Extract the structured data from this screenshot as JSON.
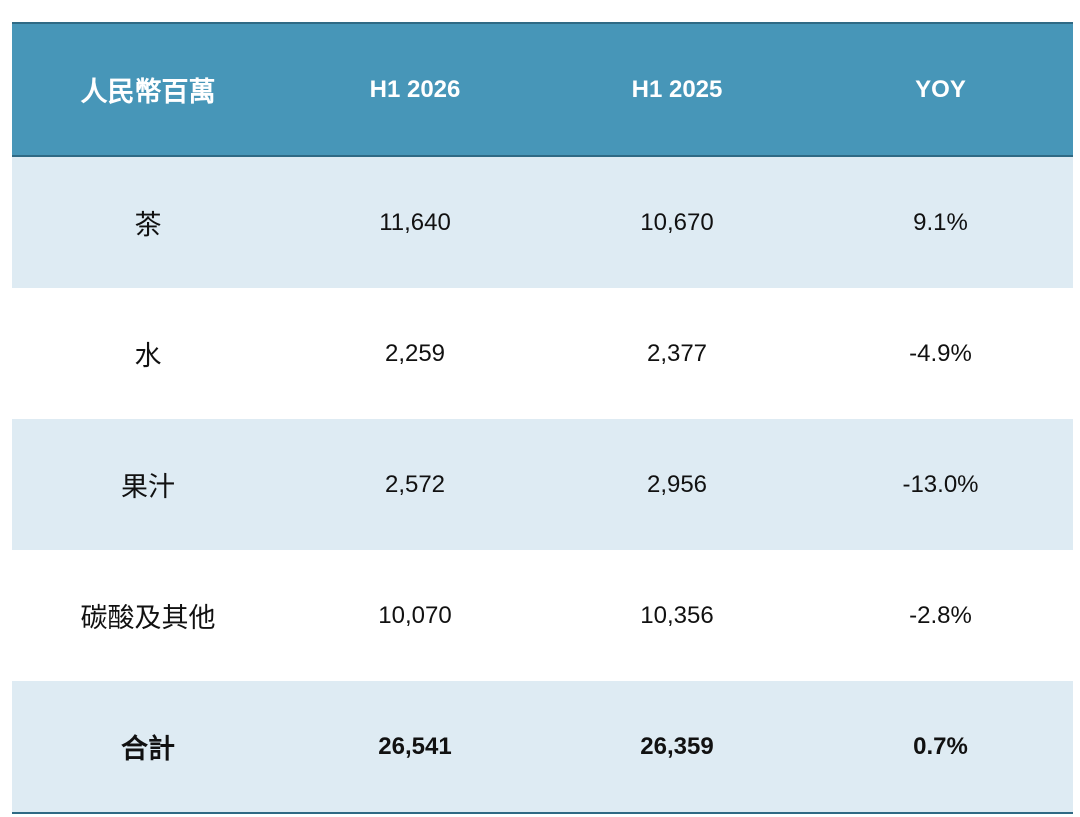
{
  "table": {
    "header": [
      "人民幣百萬",
      "H1 2026",
      "H1 2025",
      "YOY"
    ],
    "rows": [
      [
        "茶",
        "11,640",
        "10,670",
        "9.1%"
      ],
      [
        "水",
        "2,259",
        "2,377",
        "-4.9%"
      ],
      [
        "果汁",
        "2,572",
        "2,956",
        "-13.0%"
      ],
      [
        "碳酸及其他",
        "10,070",
        "10,356",
        "-2.8%"
      ]
    ],
    "total": [
      "合計",
      "26,541",
      "26,359",
      "0.7%"
    ]
  }
}
